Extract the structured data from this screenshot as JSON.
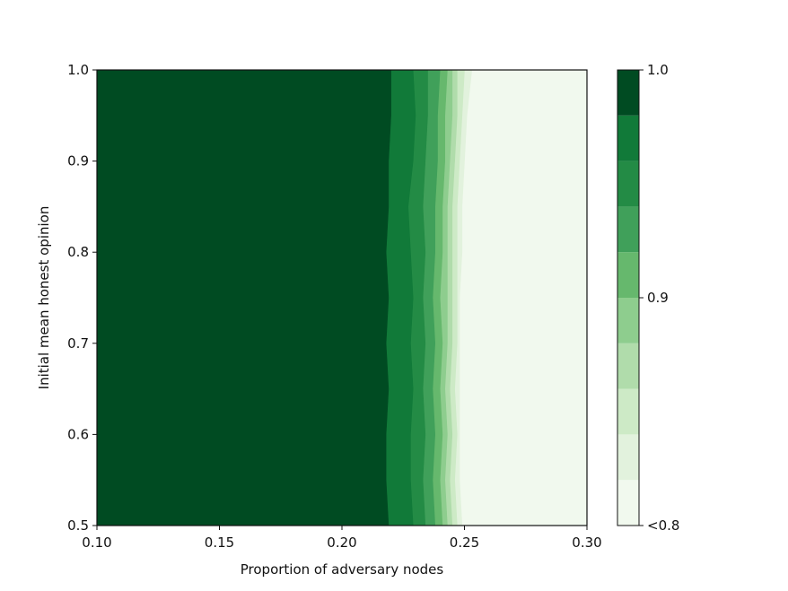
{
  "chart_data": {
    "type": "heatmap",
    "subtype": "filled-contour",
    "title": "",
    "xlabel": "Proportion of adversary nodes",
    "ylabel": "Initial mean honest opinion",
    "xlim": [
      0.1,
      0.3
    ],
    "ylim": [
      0.5,
      1.0
    ],
    "x_ticks": [
      "0.10",
      "0.15",
      "0.20",
      "0.25",
      "0.30"
    ],
    "y_ticks": [
      "0.5",
      "0.6",
      "0.7",
      "0.8",
      "0.9",
      "1.0"
    ],
    "y_ticks_values": [
      0.5,
      0.6,
      0.7,
      0.8,
      0.9,
      1.0
    ],
    "x_ticks_values": [
      0.1,
      0.15,
      0.2,
      0.25,
      0.3
    ],
    "colorbar": {
      "min": 0.8,
      "max": 1.0,
      "levels": [
        0.8,
        0.82,
        0.84,
        0.86,
        0.88,
        0.9,
        0.92,
        0.94,
        0.96,
        0.98,
        1.0
      ],
      "tick_labels": [
        "<0.8",
        "0.9",
        "1.0"
      ],
      "tick_values": [
        0.8,
        0.9,
        1.0
      ],
      "colors": [
        "#f1f9ee",
        "#e2f2dd",
        "#cdeac6",
        "#b0dcab",
        "#8ecd8e",
        "#66b86d",
        "#40a05a",
        "#238b45",
        "#117a39",
        "#004b22"
      ]
    },
    "contour_boundaries": {
      "y": [
        0.5,
        0.55,
        0.6,
        0.65,
        0.7,
        0.75,
        0.8,
        0.85,
        0.9,
        0.95,
        1.0
      ],
      "x_by_level": [
        [
          0.219,
          0.218,
          0.218,
          0.219,
          0.218,
          0.219,
          0.218,
          0.219,
          0.219,
          0.22,
          0.22
        ],
        [
          0.229,
          0.228,
          0.228,
          0.229,
          0.228,
          0.229,
          0.228,
          0.227,
          0.229,
          0.23,
          0.229
        ],
        [
          0.234,
          0.233,
          0.234,
          0.233,
          0.234,
          0.233,
          0.234,
          0.233,
          0.234,
          0.235,
          0.235
        ],
        [
          0.238,
          0.237,
          0.238,
          0.237,
          0.238,
          0.237,
          0.238,
          0.238,
          0.239,
          0.239,
          0.24
        ],
        [
          0.241,
          0.24,
          0.241,
          0.24,
          0.241,
          0.24,
          0.241,
          0.241,
          0.242,
          0.242,
          0.243
        ],
        [
          0.243,
          0.242,
          0.243,
          0.242,
          0.243,
          0.243,
          0.243,
          0.243,
          0.244,
          0.245,
          0.245
        ],
        [
          0.245,
          0.244,
          0.245,
          0.244,
          0.245,
          0.245,
          0.245,
          0.245,
          0.246,
          0.247,
          0.247
        ],
        [
          0.247,
          0.246,
          0.247,
          0.246,
          0.247,
          0.247,
          0.247,
          0.247,
          0.248,
          0.249,
          0.25
        ],
        [
          0.249,
          0.248,
          0.248,
          0.248,
          0.248,
          0.248,
          0.249,
          0.249,
          0.25,
          0.251,
          0.253
        ],
        [
          0.25,
          0.249,
          0.249,
          0.249,
          0.249,
          0.249,
          0.25,
          0.25,
          0.252,
          0.254,
          0.256
        ]
      ]
    }
  }
}
